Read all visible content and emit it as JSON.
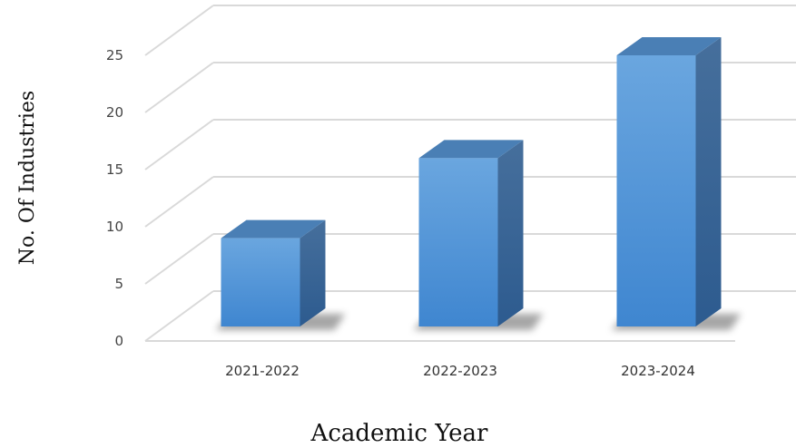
{
  "chart_data": {
    "type": "bar",
    "style": "3d-column",
    "categories": [
      "2021-2022",
      "2022-2023",
      "2023-2024"
    ],
    "values": [
      9,
      16,
      25
    ],
    "xlabel": "Academic Year",
    "ylabel": "No. Of Industries",
    "ylim": [
      0,
      30
    ],
    "yticks": [
      0,
      5,
      10,
      15,
      20,
      25
    ],
    "grid": true,
    "legend": "none",
    "colors": {
      "bar_front": "#5b9bd5",
      "bar_top": "#4a7fb5",
      "bar_side": "#3c6a9c",
      "grid": "#d9d9d9"
    }
  }
}
